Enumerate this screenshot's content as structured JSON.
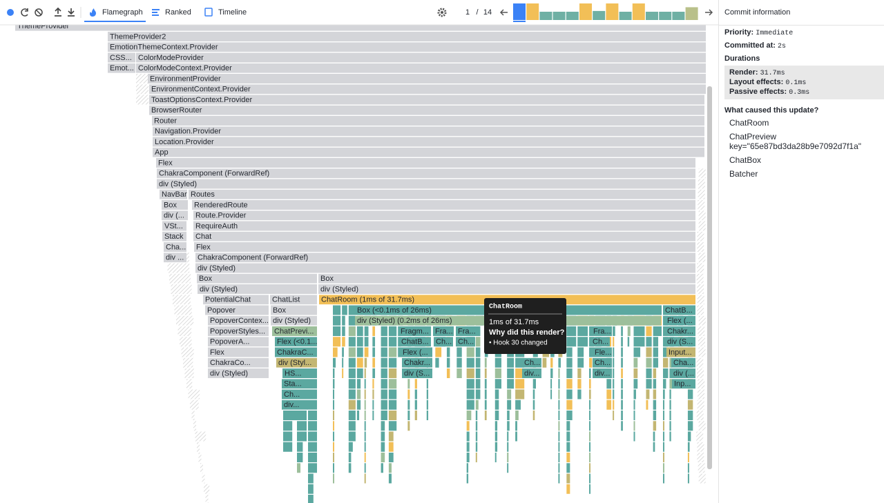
{
  "toolbar": {
    "tabs": [
      "Flamegraph",
      "Ranked",
      "Timeline"
    ],
    "commit_index": "1",
    "separator": "/",
    "commit_total": "14"
  },
  "commits": {
    "values": [
      22,
      22,
      11,
      11,
      11,
      22,
      12,
      22,
      11,
      22,
      11,
      11,
      11,
      17
    ],
    "colors": [
      "#3b82f6",
      "#f2bf57",
      "#6fb0a4",
      "#6fb0a4",
      "#6fb0a4",
      "#f2bf57",
      "#6fb0a4",
      "#f2bf57",
      "#6fb0a4",
      "#f2bf57",
      "#6fb0a4",
      "#6fb0a4",
      "#6fb0a4",
      "#b9c08a"
    ]
  },
  "flamegraph": {
    "nodes": [
      "ThemeProvider",
      "ThemeProvider2",
      "EmotionThemeContext.Provider",
      "CSS...",
      "ColorModeProvider",
      "Emot...",
      "ColorModeContext.Provider",
      "EnvironmentProvider",
      "EnvironmentContext.Provider",
      "ToastOptionsContext.Provider",
      "BrowserRouter",
      "Router",
      "Navigation.Provider",
      "Location.Provider",
      "App",
      "Flex",
      "ChakraComponent (ForwardRef)",
      "div (Styled)",
      "NavBar",
      "Routes",
      "Box",
      "RenderedRoute",
      "div (...",
      "Route.Provider",
      "VSt...",
      "RequireAuth",
      "Stack",
      "Chat",
      "Cha...",
      "Flex",
      "div ...",
      "ChakraComponent (ForwardRef)",
      "div (Styled)",
      "Box",
      "Box",
      "div (Styled)",
      "div (Styled)",
      "PotentialChat",
      "ChatList",
      "ChatRoom (1ms of 31.7ms)",
      "Popover",
      "Box",
      "Box (<0.1ms of 26ms)",
      "ChatB...",
      "PopoverContex...",
      "div (Styled)",
      "div (Styled) (0.2ms of 26ms)",
      "Flex (...",
      "PopoverStyles...",
      "ChatPrevi...",
      "Fragm...",
      "Fra...",
      "Fra...",
      "Fra...",
      "Chakr...",
      "PopoverA...",
      "Flex (<0.1...",
      "ChatB...",
      "Ch...",
      "Ch...",
      "Ch...",
      "div (S...",
      "Flex",
      "ChakraC...",
      "Flex (...",
      "Fle...",
      "Input...",
      "ChakraCo...",
      "div (Styl...",
      "Chakr...",
      "Ch...",
      "Ch...",
      "Cha...",
      "div (Styled)",
      "HS...",
      "div (S...",
      "div...",
      "div...",
      "div (...",
      "Sta...",
      "Inp...",
      "Ch...",
      "div..."
    ],
    "tooltip": {
      "title": "ChatRoom",
      "duration": "1ms of 31.7ms",
      "question": "Why did this render?",
      "reason": "• Hook 30 changed"
    }
  },
  "commit_info": {
    "title": "Commit information",
    "priority_label": "Priority:",
    "priority": "Immediate",
    "committed_label": "Committed at:",
    "committed": "2s",
    "durations_label": "Durations",
    "durations": [
      {
        "label": "Render:",
        "value": "31.7ms"
      },
      {
        "label": "Layout effects:",
        "value": "0.1ms"
      },
      {
        "label": "Passive effects:",
        "value": "0.3ms"
      }
    ],
    "causes_label": "What caused this update?",
    "causes": [
      "ChatRoom",
      "ChatPreview key=\"65e87bd3da28b9e7092d7f1a\"",
      "ChatBox",
      "Batcher"
    ]
  }
}
